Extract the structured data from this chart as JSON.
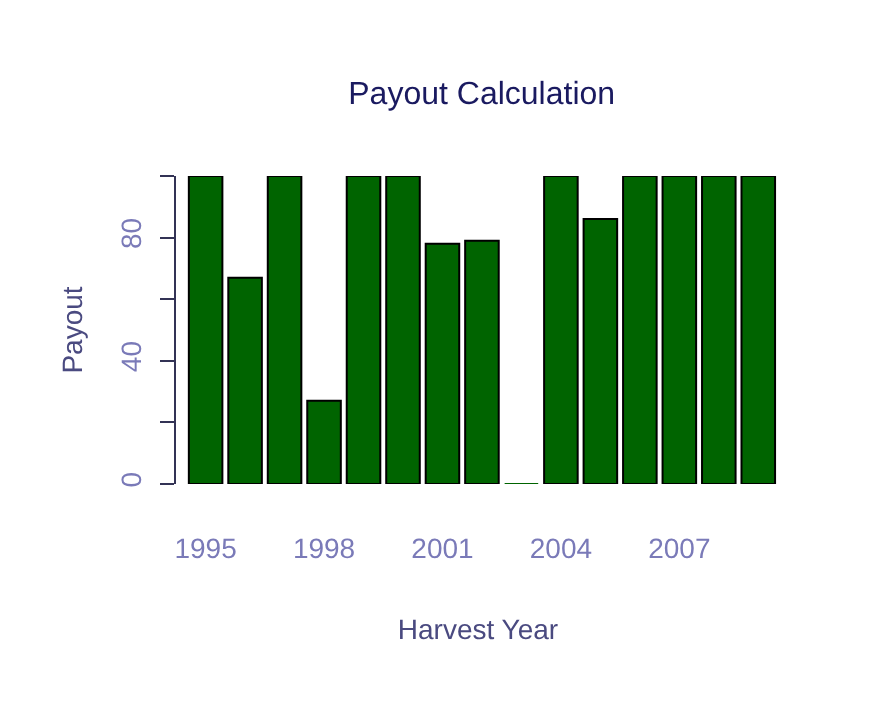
{
  "chart_data": {
    "type": "bar",
    "title": "Payout Calculation",
    "xlabel": "Harvest Year",
    "ylabel": "Payout",
    "categories": [
      "1995",
      null,
      null,
      "1998",
      null,
      null,
      "2001",
      null,
      null,
      "2004",
      null,
      null,
      "2007",
      null,
      null
    ],
    "values": [
      100,
      67,
      100,
      27,
      100,
      100,
      78,
      79,
      0,
      100,
      86,
      100,
      100,
      100,
      100
    ],
    "color": "#006400",
    "ylim": [
      0,
      100
    ],
    "yticks": [
      0,
      {
        "value": 20,
        "label": null
      },
      40,
      {
        "value": 60,
        "label": null
      },
      80,
      {
        "value": 100,
        "label": null
      }
    ],
    "grid": false
  }
}
